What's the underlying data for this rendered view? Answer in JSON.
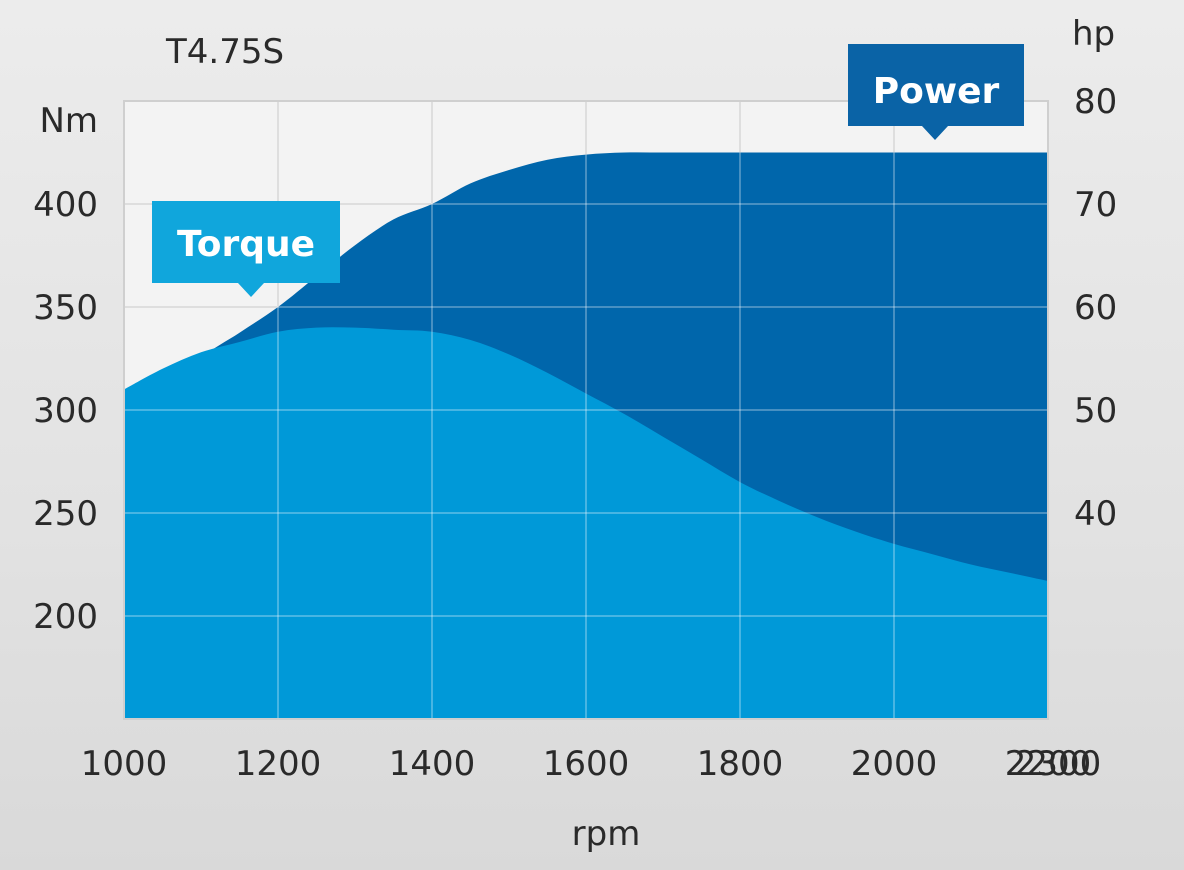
{
  "chart_data": {
    "type": "area",
    "title": "T4.75S",
    "xlabel": "rpm",
    "ylabel_left": "Nm",
    "ylabel_right": "hp",
    "x_ticks": [
      1000,
      1200,
      1400,
      1600,
      1800,
      2000,
      2200,
      2300
    ],
    "y_left_ticks": [
      200,
      250,
      300,
      350,
      400
    ],
    "y_right_ticks": [
      40,
      50,
      60,
      70,
      80
    ],
    "xlim": [
      1000,
      2200
    ],
    "ylim_left": [
      150,
      450
    ],
    "ylim_right": [
      20,
      80
    ],
    "grid": true,
    "x_grid_values": [
      1000,
      1200,
      1400,
      1600,
      1800,
      2000,
      2200
    ],
    "y_left_grid_values": [
      150,
      200,
      250,
      300,
      350,
      400,
      450
    ],
    "series": [
      {
        "name": "Torque",
        "axis": "left",
        "color": "#0099d8",
        "callout_color": "#10a6dc",
        "x": [
          1000,
          1050,
          1100,
          1150,
          1200,
          1250,
          1300,
          1350,
          1400,
          1450,
          1500,
          1550,
          1600,
          1650,
          1700,
          1750,
          1800,
          1850,
          1900,
          1950,
          2000,
          2050,
          2100,
          2150,
          2200
        ],
        "values": [
          310,
          320,
          328,
          333,
          338,
          340,
          340,
          339,
          338,
          334,
          327,
          318,
          308,
          298,
          287,
          276,
          265,
          256,
          248,
          241,
          235,
          230,
          225,
          221,
          217
        ]
      },
      {
        "name": "Power",
        "axis": "right",
        "color": "#0066ab",
        "callout_color": "#0a63a6",
        "x": [
          1000,
          1050,
          1100,
          1150,
          1200,
          1250,
          1300,
          1350,
          1400,
          1450,
          1500,
          1550,
          1600,
          1650,
          1700,
          1750,
          1800,
          1900,
          2000,
          2100,
          2200
        ],
        "values": [
          47,
          51,
          55,
          57.5,
          60,
          63,
          66,
          68.5,
          70,
          72,
          73.3,
          74.3,
          74.8,
          75,
          75,
          75,
          75,
          75,
          75,
          75,
          75
        ]
      }
    ]
  }
}
